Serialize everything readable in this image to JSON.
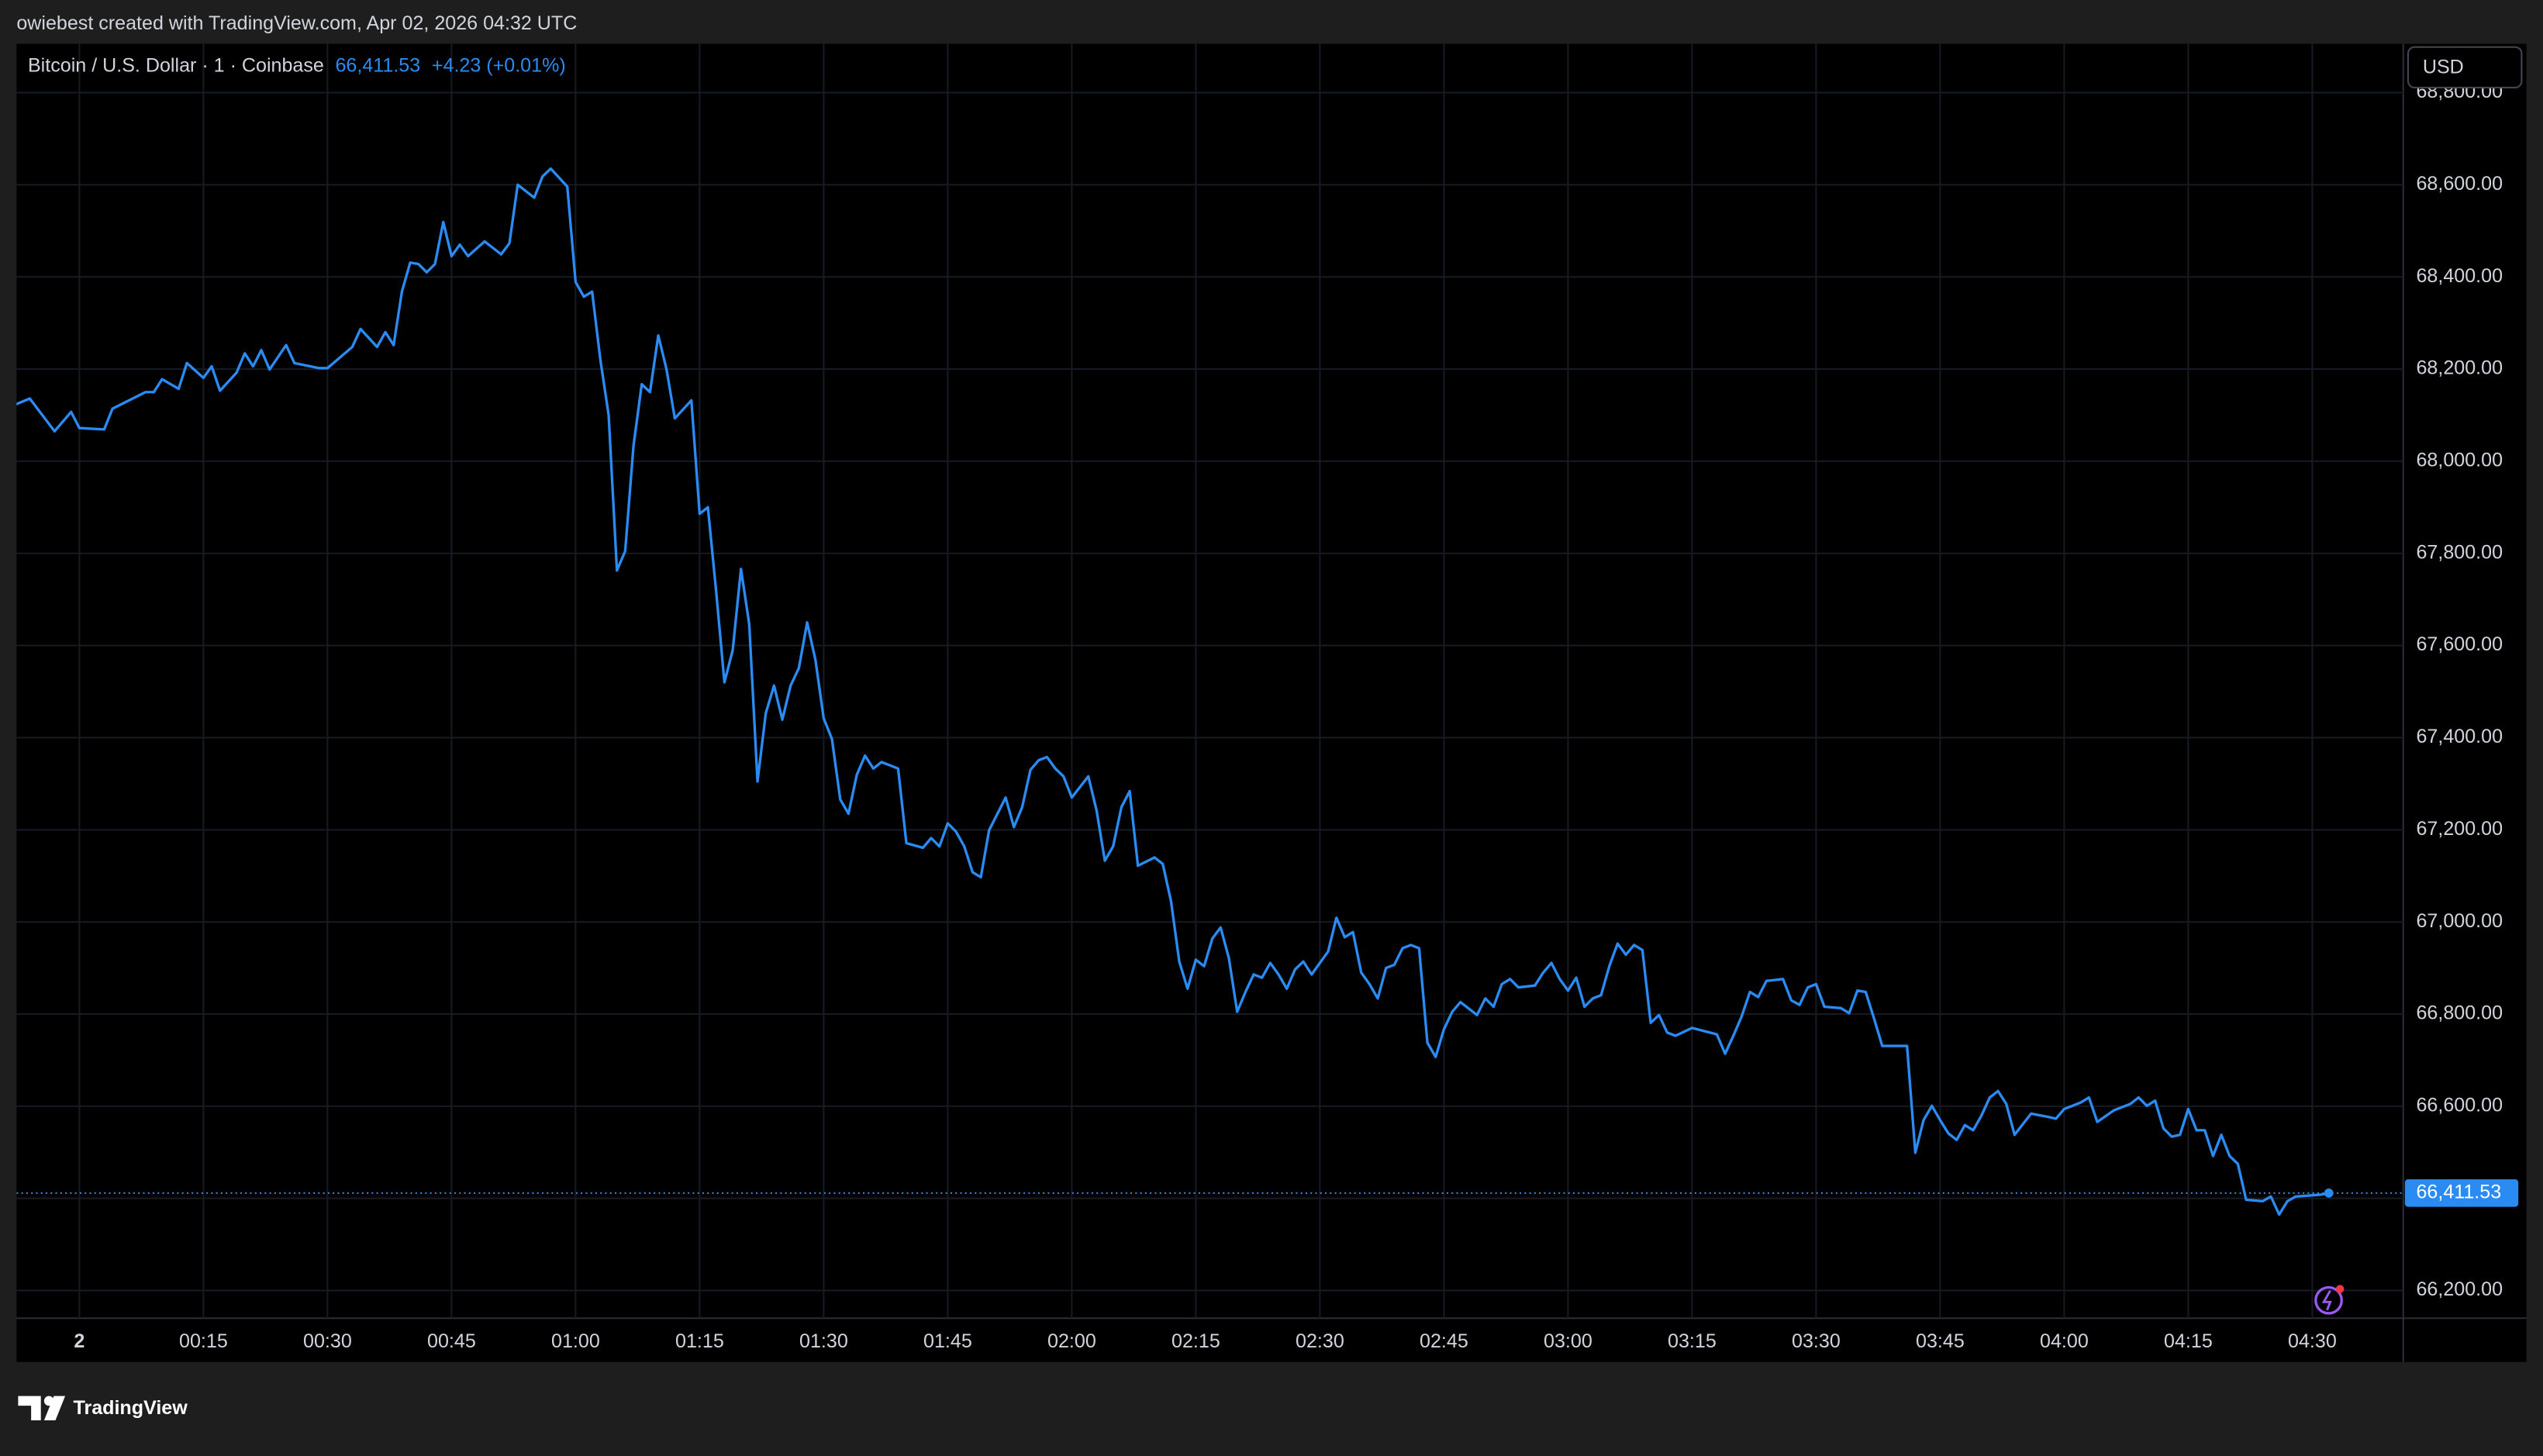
{
  "attribution": "owiebest created with TradingView.com, Apr 02, 2026 04:32 UTC",
  "logo": "TradingView",
  "chart_data": {
    "type": "line",
    "symbol": "Bitcoin / U.S. Dollar · 1 · Coinbase",
    "change": "+4.23 (+0.01%)",
    "currency": "USD",
    "last": {
      "value": 66411.53,
      "label": "66,411.53"
    },
    "grid": true,
    "xlim": [
      -7.6,
      281
    ],
    "ylim": [
      66140,
      68906
    ],
    "xticks": [
      {
        "value": 0,
        "label": "2"
      },
      {
        "value": 15,
        "label": "00:15"
      },
      {
        "value": 30,
        "label": "00:30"
      },
      {
        "value": 45,
        "label": "00:45"
      },
      {
        "value": 60,
        "label": "01:00"
      },
      {
        "value": 75,
        "label": "01:15"
      },
      {
        "value": 90,
        "label": "01:30"
      },
      {
        "value": 105,
        "label": "01:45"
      },
      {
        "value": 120,
        "label": "02:00"
      },
      {
        "value": 135,
        "label": "02:15"
      },
      {
        "value": 150,
        "label": "02:30"
      },
      {
        "value": 165,
        "label": "02:45"
      },
      {
        "value": 180,
        "label": "03:00"
      },
      {
        "value": 195,
        "label": "03:15"
      },
      {
        "value": 210,
        "label": "03:30"
      },
      {
        "value": 225,
        "label": "03:45"
      },
      {
        "value": 240,
        "label": "04:00"
      },
      {
        "value": 255,
        "label": "04:15"
      },
      {
        "value": 270,
        "label": "04:30"
      }
    ],
    "yticks": [
      {
        "value": 66200,
        "label": "66,200.00"
      },
      {
        "value": 66400,
        "label": "66,400.00"
      },
      {
        "value": 66600,
        "label": "66,600.00"
      },
      {
        "value": 66800,
        "label": "66,800.00"
      },
      {
        "value": 67000,
        "label": "67,000.00"
      },
      {
        "value": 67200,
        "label": "67,200.00"
      },
      {
        "value": 67400,
        "label": "67,400.00"
      },
      {
        "value": 67600,
        "label": "67,600.00"
      },
      {
        "value": 67800,
        "label": "67,800.00"
      },
      {
        "value": 68000,
        "label": "68,000.00"
      },
      {
        "value": 68200,
        "label": "68,200.00"
      },
      {
        "value": 68400,
        "label": "68,400.00"
      },
      {
        "value": 68600,
        "label": "68,600.00"
      },
      {
        "value": 68800,
        "label": "68,800.00"
      }
    ],
    "series": [
      {
        "name": "Bitcoin / U.S. Dollar",
        "color": "#2a8bf2",
        "x": [
          -8,
          -6,
          -3,
          -1,
          0,
          3,
          4,
          8,
          9,
          10,
          12,
          13,
          15,
          16,
          17,
          19,
          20,
          21,
          22,
          23,
          25,
          26,
          29,
          30,
          33,
          34,
          36,
          37,
          38,
          39,
          40,
          41,
          42,
          43,
          44,
          45,
          46,
          47,
          49,
          51,
          52,
          53,
          55,
          56,
          57,
          59,
          60,
          61,
          62,
          63,
          64,
          65,
          66,
          67,
          68,
          69,
          70,
          71,
          72,
          74,
          75,
          76,
          77,
          78,
          79,
          80,
          81,
          82,
          83,
          84,
          85,
          86,
          87,
          88,
          89,
          90,
          91,
          92,
          93,
          94,
          95,
          96,
          97,
          99,
          100,
          102,
          103,
          104,
          105,
          106,
          107,
          108,
          109,
          110,
          112,
          113,
          114,
          115,
          116,
          117,
          118,
          119,
          120,
          122,
          123,
          124,
          125,
          126,
          127,
          128,
          130,
          131,
          132,
          133,
          134,
          135,
          136,
          137,
          138,
          139,
          140,
          141,
          142,
          143,
          144,
          145,
          146,
          147,
          148,
          149,
          151,
          152,
          153,
          154,
          155,
          156,
          157,
          158,
          159,
          160,
          161,
          162,
          163,
          164,
          165,
          166,
          167,
          169,
          170,
          171,
          172,
          173,
          174,
          176,
          177,
          178,
          179,
          180,
          181,
          182,
          183,
          184,
          185,
          186,
          187,
          188,
          189,
          190,
          191,
          192,
          193,
          195,
          198,
          199,
          200,
          201,
          202,
          203,
          204,
          206,
          207,
          208,
          209,
          210,
          211,
          213,
          214,
          215,
          216,
          217,
          218,
          221,
          222,
          223,
          224,
          225,
          226,
          227,
          228,
          229,
          230,
          231,
          232,
          233,
          234,
          236,
          238,
          239,
          240,
          242,
          243,
          244,
          246,
          248,
          249,
          250,
          251,
          252,
          253,
          254,
          255,
          256,
          257,
          258,
          259,
          260,
          261,
          262,
          264,
          265,
          266,
          267,
          268,
          271,
          272
        ],
        "values": [
          68121,
          68136,
          68065,
          68107,
          68072,
          68069,
          68114,
          68150,
          68150,
          68178,
          68157,
          68213,
          68181,
          68206,
          68153,
          68192,
          68234,
          68206,
          68241,
          68199,
          68252,
          68213,
          68202,
          68202,
          68248,
          68287,
          68248,
          68280,
          68252,
          68368,
          68431,
          68428,
          68410,
          68428,
          68519,
          68445,
          68470,
          68445,
          68477,
          68449,
          68473,
          68600,
          68572,
          68618,
          68635,
          68596,
          68389,
          68357,
          68368,
          68220,
          68100,
          67763,
          67805,
          68033,
          68167,
          68150,
          68273,
          68199,
          68093,
          68132,
          67886,
          67900,
          67717,
          67520,
          67590,
          67766,
          67646,
          67305,
          67453,
          67513,
          67439,
          67513,
          67551,
          67650,
          67569,
          67442,
          67397,
          67266,
          67235,
          67319,
          67361,
          67333,
          67347,
          67333,
          67171,
          67161,
          67182,
          67164,
          67214,
          67196,
          67164,
          67108,
          67097,
          67199,
          67270,
          67206,
          67249,
          67330,
          67351,
          67358,
          67333,
          67316,
          67270,
          67316,
          67242,
          67133,
          67164,
          67249,
          67284,
          67122,
          67140,
          67126,
          67045,
          66914,
          66855,
          66918,
          66904,
          66964,
          66988,
          66921,
          66805,
          66848,
          66886,
          66879,
          66911,
          66886,
          66855,
          66897,
          66914,
          66886,
          66936,
          67009,
          66967,
          66978,
          66890,
          66865,
          66834,
          66900,
          66907,
          66943,
          66950,
          66943,
          66738,
          66707,
          66767,
          66805,
          66826,
          66798,
          66834,
          66816,
          66865,
          66876,
          66858,
          66862,
          66890,
          66911,
          66876,
          66851,
          66879,
          66816,
          66834,
          66841,
          66904,
          66953,
          66929,
          66950,
          66939,
          66781,
          66798,
          66760,
          66753,
          66770,
          66756,
          66714,
          66753,
          66795,
          66848,
          66837,
          66872,
          66876,
          66830,
          66820,
          66858,
          66865,
          66816,
          66813,
          66802,
          66851,
          66848,
          66791,
          66731,
          66731,
          66499,
          66570,
          66601,
          66570,
          66541,
          66527,
          66559,
          66548,
          66580,
          66619,
          66633,
          66605,
          66538,
          66584,
          66577,
          66573,
          66594,
          66608,
          66619,
          66566,
          66591,
          66605,
          66619,
          66601,
          66612,
          66552,
          66534,
          66538,
          66594,
          66548,
          66548,
          66492,
          66538,
          66492,
          66475,
          66397,
          66394,
          66404,
          66365,
          66394,
          66404,
          66408,
          66411.53
        ]
      }
    ]
  }
}
